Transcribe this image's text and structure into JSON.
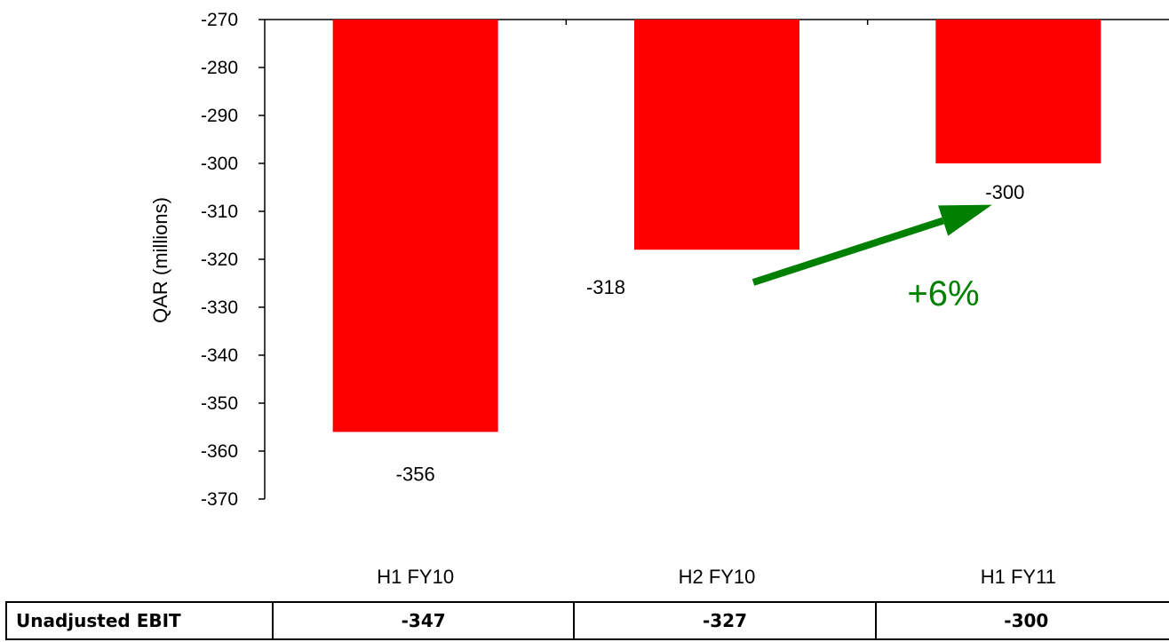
{
  "chart_data": {
    "type": "bar",
    "categories": [
      "H1 FY10",
      "H2 FY10",
      "H1 FY11"
    ],
    "values": [
      -356,
      -318,
      -300
    ],
    "data_labels": [
      "-356",
      "-318",
      "-300"
    ],
    "ylabel": "QAR (millions)",
    "ylim": [
      -370,
      -270
    ],
    "yticks": [
      -270,
      -280,
      -290,
      -300,
      -310,
      -320,
      -330,
      -340,
      -350,
      -360,
      -370
    ],
    "bar_color": "#ff0000",
    "grid": false,
    "annotation": {
      "text": "+6%",
      "from": "H2 FY10",
      "to": "H1 FY11",
      "color": "#008000"
    }
  },
  "table": {
    "row_label": "Unadjusted EBIT",
    "values": [
      "-347",
      "-327",
      "-300"
    ]
  }
}
